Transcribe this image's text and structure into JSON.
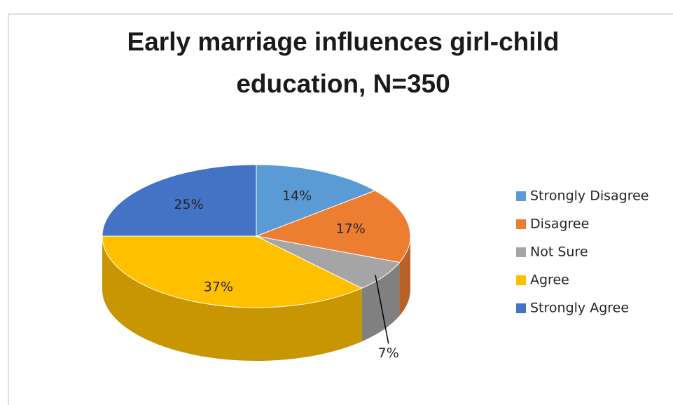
{
  "chart_data": {
    "type": "pie3d",
    "title": "Early marriage influences girl-child education, N=350",
    "categories": [
      "Strongly Disagree",
      "Disagree",
      "Not Sure",
      "Agree",
      "Strongly Agree"
    ],
    "values": [
      14,
      17,
      7,
      37,
      25
    ],
    "value_labels": [
      "14%",
      "17%",
      "7%",
      "37%",
      "25%"
    ],
    "colors": [
      "#5b9bd5",
      "#ed7d31",
      "#a5a5a5",
      "#ffc000",
      "#4472c4"
    ],
    "legend": "right"
  }
}
